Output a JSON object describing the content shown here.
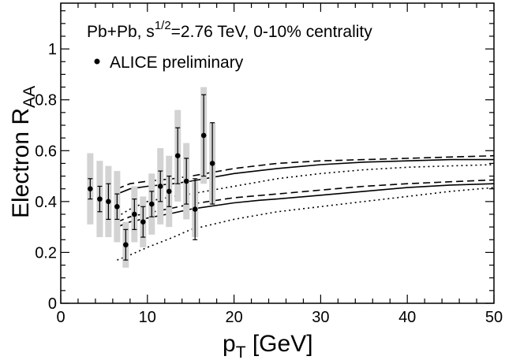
{
  "chart_data": {
    "type": "scatter",
    "title": "",
    "header": {
      "pre": "Pb+Pb,  s",
      "sup": "1/2",
      "post": "=2.76  TeV,  0-10% centrality"
    },
    "legend": {
      "label": "ALICE  preliminary",
      "placement": "top-left"
    },
    "xlabel": {
      "main": "p",
      "sub": "T",
      "rest": " [GeV]"
    },
    "ylabel": {
      "main": "Electron  R",
      "sub": "AA"
    },
    "xlim": [
      0,
      50
    ],
    "ylim": [
      0,
      1.18
    ],
    "xticks": [
      0,
      10,
      20,
      30,
      40,
      50
    ],
    "xtick_labels": [
      "0",
      "10",
      "20",
      "30",
      "40",
      "50"
    ],
    "yticks": [
      0,
      0.2,
      0.4,
      0.6,
      0.8,
      1
    ],
    "ytick_labels": [
      "0",
      "0.2",
      "0.4",
      "0.6",
      "0.8",
      "1"
    ],
    "x_minor_step": 2,
    "y_minor_step": 0.05,
    "grid": false,
    "data": [
      {
        "x": 3.4,
        "y": 0.45,
        "stat": 0.04,
        "sys": 0.14
      },
      {
        "x": 4.5,
        "y": 0.41,
        "stat": 0.05,
        "sys": 0.15
      },
      {
        "x": 5.5,
        "y": 0.4,
        "stat": 0.07,
        "sys": 0.14
      },
      {
        "x": 6.5,
        "y": 0.38,
        "stat": 0.05,
        "sys": 0.14
      },
      {
        "x": 7.5,
        "y": 0.23,
        "stat": 0.06,
        "sys": 0.09
      },
      {
        "x": 8.5,
        "y": 0.35,
        "stat": 0.06,
        "sys": 0.11
      },
      {
        "x": 9.5,
        "y": 0.32,
        "stat": 0.06,
        "sys": 0.1
      },
      {
        "x": 10.5,
        "y": 0.39,
        "stat": 0.05,
        "sys": 0.12
      },
      {
        "x": 11.5,
        "y": 0.46,
        "stat": 0.06,
        "sys": 0.15
      },
      {
        "x": 12.5,
        "y": 0.44,
        "stat": 0.06,
        "sys": 0.14
      },
      {
        "x": 13.5,
        "y": 0.58,
        "stat": 0.11,
        "sys": 0.18
      },
      {
        "x": 14.5,
        "y": 0.48,
        "stat": 0.09,
        "sys": 0.15
      },
      {
        "x": 15.5,
        "y": 0.37,
        "stat": 0.12,
        "sys": 0.11
      },
      {
        "x": 16.5,
        "y": 0.66,
        "stat": 0.16,
        "sys": 0.19
      },
      {
        "x": 17.5,
        "y": 0.55,
        "stat": 0.16,
        "sys": 0.16
      }
    ],
    "series": [
      {
        "name": "model upper (solid)",
        "style": "solid",
        "x": [
          6.5,
          8,
          10,
          13,
          15,
          20,
          25,
          30,
          35,
          40,
          45,
          50
        ],
        "y": [
          0.43,
          0.45,
          0.46,
          0.47,
          0.48,
          0.51,
          0.53,
          0.545,
          0.555,
          0.56,
          0.565,
          0.565
        ]
      },
      {
        "name": "model upper (dashed)",
        "style": "dashed",
        "x": [
          6.5,
          8,
          10,
          13,
          15,
          20,
          25,
          30,
          35,
          40,
          45,
          50
        ],
        "y": [
          0.45,
          0.47,
          0.48,
          0.49,
          0.5,
          0.53,
          0.55,
          0.56,
          0.565,
          0.57,
          0.575,
          0.58
        ]
      },
      {
        "name": "model upper (dotted)",
        "style": "dotted",
        "x": [
          6.5,
          8,
          10,
          13,
          15,
          20,
          25,
          30,
          35,
          40,
          45,
          50
        ],
        "y": [
          0.34,
          0.37,
          0.4,
          0.42,
          0.43,
          0.46,
          0.49,
          0.51,
          0.525,
          0.535,
          0.54,
          0.545
        ]
      },
      {
        "name": "model lower (solid)",
        "style": "solid",
        "x": [
          6.5,
          8,
          10,
          13,
          15,
          20,
          23,
          25,
          30,
          35,
          40,
          45,
          50
        ],
        "y": [
          0.3,
          0.32,
          0.335,
          0.355,
          0.37,
          0.395,
          0.405,
          0.41,
          0.425,
          0.44,
          0.455,
          0.465,
          0.47
        ]
      },
      {
        "name": "model lower (dashed)",
        "style": "dashed",
        "x": [
          6.5,
          8,
          10,
          13,
          15,
          20,
          25,
          30,
          35,
          40,
          45,
          50
        ],
        "y": [
          0.32,
          0.34,
          0.355,
          0.375,
          0.39,
          0.415,
          0.43,
          0.445,
          0.46,
          0.47,
          0.478,
          0.485
        ]
      },
      {
        "name": "model lower (dotted)",
        "style": "dotted",
        "x": [
          6.5,
          8,
          10,
          13,
          15,
          20,
          25,
          30,
          35,
          40,
          45,
          50
        ],
        "y": [
          0.17,
          0.19,
          0.22,
          0.26,
          0.29,
          0.33,
          0.36,
          0.38,
          0.4,
          0.42,
          0.44,
          0.455
        ]
      }
    ]
  }
}
